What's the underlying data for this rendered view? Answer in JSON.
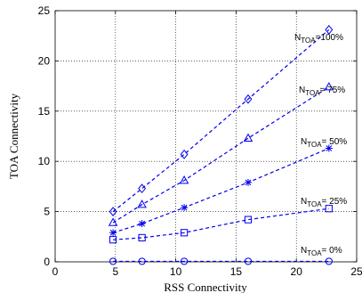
{
  "chart_data": {
    "type": "line",
    "title": "",
    "xlabel": "RSS Connectivity",
    "ylabel": "TOA Connectivity",
    "xlim": [
      0,
      25
    ],
    "ylim": [
      0,
      25
    ],
    "xticks": [
      "0",
      "5",
      "10",
      "15",
      "20",
      "25"
    ],
    "yticks": [
      "0",
      "5",
      "10",
      "15",
      "20",
      "25"
    ],
    "grid": true,
    "line_style": "dashed",
    "color": "#0000ee",
    "x": [
      4.8,
      7.2,
      10.7,
      16.0,
      22.7
    ],
    "series": [
      {
        "values": [
          5.0,
          7.3,
          10.7,
          16.2,
          23.1
        ],
        "marker": "diamond",
        "annotation": {
          "main": "N",
          "sub": "TOA",
          "suffix": "=100%"
        }
      },
      {
        "values": [
          3.9,
          5.7,
          8.1,
          12.3,
          17.4
        ],
        "marker": "triangle",
        "annotation": {
          "main": "N",
          "sub": "TOA",
          "suffix": "= 75%"
        }
      },
      {
        "values": [
          2.9,
          3.8,
          5.4,
          7.9,
          11.3
        ],
        "marker": "star",
        "annotation": {
          "main": "N",
          "sub": "TOA",
          "suffix": "= 50%"
        }
      },
      {
        "values": [
          2.2,
          2.4,
          2.9,
          4.2,
          5.3
        ],
        "marker": "square",
        "annotation": {
          "main": "N",
          "sub": "TOA",
          "suffix": "= 25%"
        }
      },
      {
        "values": [
          0.05,
          0.05,
          0.05,
          0.05,
          0.05
        ],
        "marker": "circle",
        "annotation": {
          "main": "N",
          "sub": "TOA",
          "suffix": "= 0%"
        }
      }
    ]
  }
}
